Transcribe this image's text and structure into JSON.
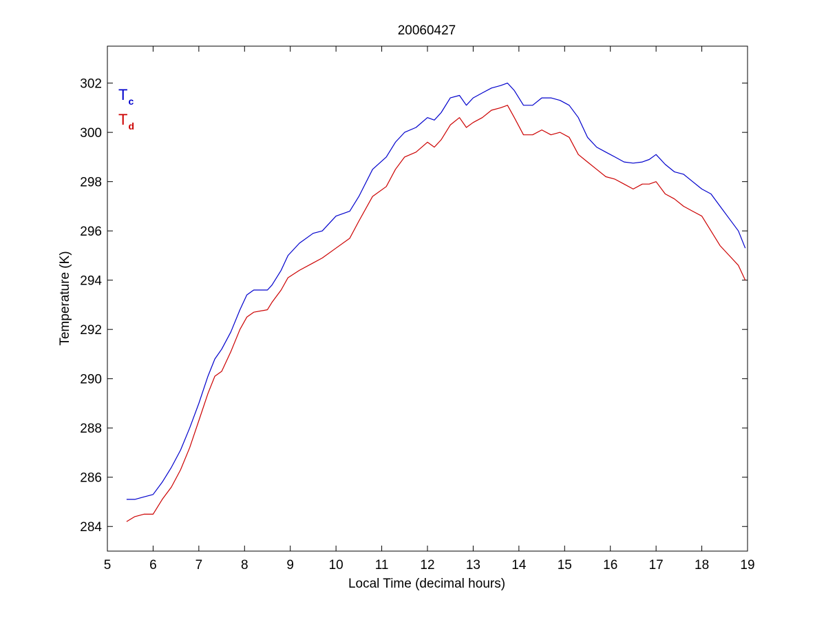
{
  "chart_data": {
    "type": "line",
    "title": "20060427",
    "xlabel": "Local Time (decimal hours)",
    "ylabel": "Temperature (K)",
    "xlim": [
      5,
      19
    ],
    "ylim": [
      283,
      303.5
    ],
    "xticks": [
      5,
      6,
      7,
      8,
      9,
      10,
      11,
      12,
      13,
      14,
      15,
      16,
      17,
      18,
      19
    ],
    "yticks": [
      284,
      286,
      288,
      290,
      292,
      294,
      296,
      298,
      300,
      302
    ],
    "grid": false,
    "legend_position": "top-left",
    "series": [
      {
        "name": "Tc",
        "legend_main": "T",
        "legend_sub": "c",
        "color": "#0000cc",
        "x": [
          5.42,
          5.6,
          5.8,
          6.0,
          6.2,
          6.4,
          6.6,
          6.8,
          7.0,
          7.2,
          7.35,
          7.5,
          7.7,
          7.9,
          8.05,
          8.2,
          8.5,
          8.6,
          8.8,
          8.95,
          9.2,
          9.5,
          9.7,
          10.0,
          10.3,
          10.5,
          10.8,
          11.1,
          11.3,
          11.5,
          11.75,
          12.0,
          12.15,
          12.3,
          12.5,
          12.7,
          12.85,
          13.0,
          13.2,
          13.4,
          13.6,
          13.75,
          13.9,
          14.1,
          14.3,
          14.5,
          14.7,
          14.9,
          15.1,
          15.3,
          15.5,
          15.7,
          15.9,
          16.1,
          16.3,
          16.5,
          16.7,
          16.85,
          17.0,
          17.2,
          17.4,
          17.6,
          17.8,
          18.0,
          18.2,
          18.4,
          18.6,
          18.8,
          18.95
        ],
        "values": [
          285.1,
          285.1,
          285.2,
          285.3,
          285.8,
          286.4,
          287.1,
          288.0,
          289.0,
          290.1,
          290.8,
          291.2,
          291.9,
          292.8,
          293.4,
          293.6,
          293.6,
          293.8,
          294.4,
          295.0,
          295.5,
          295.9,
          296.0,
          296.6,
          296.8,
          297.4,
          298.5,
          299.0,
          299.6,
          300.0,
          300.2,
          300.6,
          300.5,
          300.8,
          301.4,
          301.5,
          301.1,
          301.4,
          301.6,
          301.8,
          301.9,
          302.0,
          301.7,
          301.1,
          301.1,
          301.4,
          301.4,
          301.3,
          301.1,
          300.6,
          299.8,
          299.4,
          299.2,
          299.0,
          298.8,
          298.75,
          298.8,
          298.9,
          299.1,
          298.7,
          298.4,
          298.3,
          298.0,
          297.7,
          297.5,
          297.0,
          296.5,
          296.0,
          295.3
        ]
      },
      {
        "name": "Td",
        "legend_main": "T",
        "legend_sub": "d",
        "color": "#cc0000",
        "x": [
          5.42,
          5.6,
          5.8,
          6.0,
          6.2,
          6.4,
          6.6,
          6.8,
          7.0,
          7.2,
          7.35,
          7.5,
          7.7,
          7.9,
          8.05,
          8.2,
          8.5,
          8.6,
          8.8,
          8.95,
          9.2,
          9.5,
          9.7,
          10.0,
          10.3,
          10.5,
          10.8,
          11.1,
          11.3,
          11.5,
          11.75,
          12.0,
          12.15,
          12.3,
          12.5,
          12.7,
          12.85,
          13.0,
          13.2,
          13.4,
          13.6,
          13.75,
          13.9,
          14.1,
          14.3,
          14.5,
          14.7,
          14.9,
          15.1,
          15.3,
          15.5,
          15.7,
          15.9,
          16.1,
          16.3,
          16.5,
          16.7,
          16.85,
          17.0,
          17.2,
          17.4,
          17.6,
          17.8,
          18.0,
          18.2,
          18.4,
          18.6,
          18.8,
          18.95
        ],
        "values": [
          284.2,
          284.4,
          284.5,
          284.5,
          285.1,
          285.6,
          286.3,
          287.2,
          288.3,
          289.4,
          290.1,
          290.3,
          291.1,
          292.0,
          292.5,
          292.7,
          292.8,
          293.1,
          293.6,
          294.1,
          294.4,
          294.7,
          294.9,
          295.3,
          295.7,
          296.4,
          297.4,
          297.8,
          298.5,
          299.0,
          299.2,
          299.6,
          299.4,
          299.7,
          300.3,
          300.6,
          300.2,
          300.4,
          300.6,
          300.9,
          301.0,
          301.1,
          300.6,
          299.9,
          299.9,
          300.1,
          299.9,
          300.0,
          299.8,
          299.1,
          298.8,
          298.5,
          298.2,
          298.1,
          297.9,
          297.7,
          297.9,
          297.9,
          298.0,
          297.5,
          297.3,
          297.0,
          296.8,
          296.6,
          296.0,
          295.4,
          295.0,
          294.6,
          294.0
        ]
      }
    ]
  }
}
